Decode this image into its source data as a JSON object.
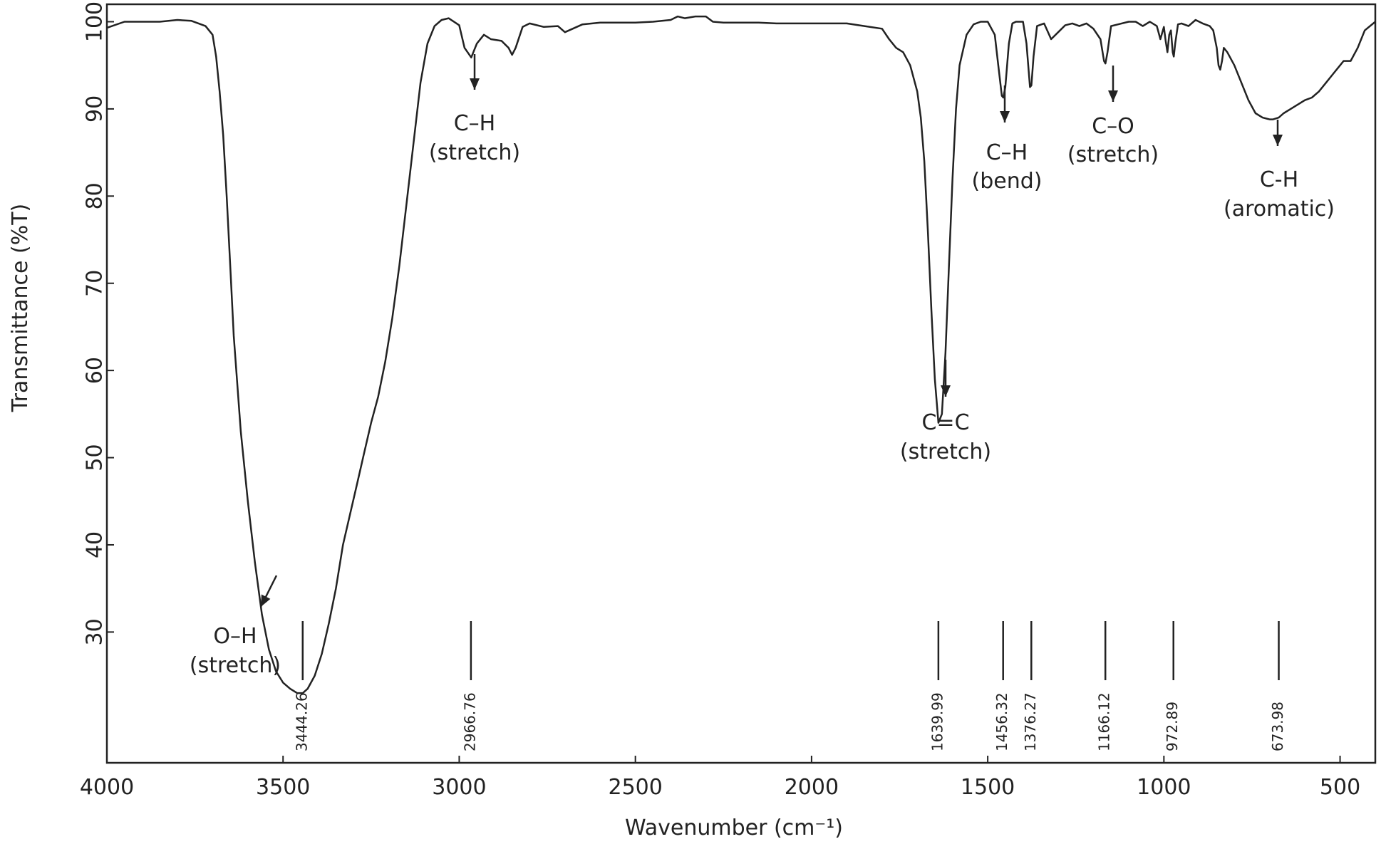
{
  "chart_data": {
    "type": "line",
    "title": "",
    "xlabel": "Wavenumber (cm⁻¹)",
    "ylabel": "Transmittance (%T)",
    "xlim": [
      4000,
      400
    ],
    "ylim": [
      15,
      102
    ],
    "x_reversed": true,
    "grid": false,
    "legend": "none",
    "x_ticks": [
      "4000",
      "3500",
      "3000",
      "2500",
      "2000",
      "1500",
      "1000",
      "500"
    ],
    "y_ticks": [
      "30",
      "40",
      "50",
      "60",
      "70",
      "80",
      "90",
      "100"
    ],
    "line_color": "#222222",
    "series": [
      {
        "x": [
          4000,
          3950,
          3900,
          3850,
          3800,
          3760,
          3740,
          3720,
          3700,
          3690,
          3680,
          3670,
          3660,
          3650,
          3640,
          3620,
          3600,
          3580,
          3560,
          3540,
          3520,
          3500,
          3480,
          3460,
          3444,
          3430,
          3410,
          3390,
          3370,
          3350,
          3330,
          3310,
          3290,
          3270,
          3250,
          3230,
          3210,
          3190,
          3170,
          3150,
          3130,
          3110,
          3090,
          3070,
          3050,
          3030,
          3000,
          2985,
          2966,
          2950,
          2930,
          2910,
          2880,
          2860,
          2850,
          2840,
          2820,
          2800,
          2760,
          2720,
          2700,
          2650,
          2600,
          2550,
          2500,
          2450,
          2400,
          2380,
          2360,
          2330,
          2300,
          2280,
          2250,
          2200,
          2150,
          2100,
          2050,
          2000,
          1950,
          1900,
          1850,
          1800,
          1780,
          1760,
          1740,
          1720,
          1700,
          1690,
          1680,
          1670,
          1660,
          1650,
          1640,
          1630,
          1620,
          1610,
          1600,
          1590,
          1580,
          1560,
          1540,
          1520,
          1500,
          1480,
          1470,
          1460,
          1456,
          1450,
          1440,
          1430,
          1420,
          1400,
          1390,
          1380,
          1376,
          1370,
          1360,
          1340,
          1320,
          1300,
          1280,
          1260,
          1240,
          1220,
          1200,
          1180,
          1170,
          1166,
          1160,
          1150,
          1130,
          1100,
          1080,
          1060,
          1040,
          1020,
          1010,
          1000,
          995,
          990,
          985,
          980,
          975,
          972,
          968,
          960,
          950,
          930,
          910,
          890,
          870,
          860,
          850,
          845,
          840,
          835,
          830,
          820,
          800,
          780,
          760,
          740,
          720,
          700,
          690,
          674,
          660,
          640,
          620,
          600,
          580,
          560,
          540,
          520,
          500,
          490,
          470,
          450,
          430,
          400
        ],
        "y": [
          99.3,
          100,
          100,
          100,
          100.2,
          100.1,
          99.8,
          99.5,
          98.5,
          96,
          92,
          87,
          80,
          72,
          64,
          53,
          45,
          38,
          32,
          28,
          25.5,
          24.2,
          23.5,
          23,
          23,
          23.5,
          25,
          27.5,
          31,
          35,
          40,
          43.5,
          47,
          50.5,
          54,
          57,
          61,
          66,
          72,
          79,
          86,
          93,
          97.5,
          99.5,
          100.2,
          100.4,
          99.6,
          97,
          95.9,
          97.5,
          98.5,
          98,
          97.8,
          97,
          96.2,
          97,
          99.4,
          99.8,
          99.4,
          99.5,
          98.8,
          99.7,
          99.9,
          99.9,
          99.9,
          100,
          100.2,
          100.6,
          100.4,
          100.6,
          100.6,
          100,
          99.9,
          99.9,
          99.9,
          99.8,
          99.8,
          99.8,
          99.8,
          99.8,
          99.5,
          99.2,
          98,
          97,
          96.5,
          95,
          92,
          89,
          84,
          76,
          67,
          59,
          54,
          55,
          62,
          72,
          82,
          90,
          95,
          98.5,
          99.7,
          100,
          100,
          98.5,
          95,
          91.5,
          91.3,
          92.5,
          97.5,
          99.8,
          100,
          100,
          97.5,
          92.5,
          92.7,
          96,
          99.5,
          99.8,
          98,
          98.8,
          99.6,
          99.8,
          99.5,
          99.8,
          99.2,
          98,
          95.5,
          95.2,
          96.5,
          99.5,
          99.7,
          100,
          100,
          99.5,
          100,
          99.5,
          98,
          99.4,
          97.8,
          96.5,
          98.5,
          99,
          96.5,
          96,
          97.5,
          99.7,
          99.8,
          99.5,
          100.2,
          99.8,
          99.5,
          99,
          97,
          95,
          94.5,
          95.5,
          97,
          96.5,
          95,
          93,
          91,
          89.5,
          89,
          88.8,
          88.8,
          89,
          89.5,
          90,
          90.5,
          91,
          91.3,
          92,
          93,
          94,
          95,
          95.5,
          95.5,
          97,
          99,
          100
        ]
      }
    ],
    "annotations": [
      {
        "line1": "O–H",
        "line2": "(stretch)"
      },
      {
        "line1": "C–H",
        "line2": "(stretch)"
      },
      {
        "line1": "C=C",
        "line2": "(stretch)"
      },
      {
        "line1": "C–H",
        "line2": "(bend)"
      },
      {
        "line1": "C–O",
        "line2": "(stretch)"
      },
      {
        "line1": "C-H",
        "line2": "(aromatic)"
      }
    ],
    "peak_labels": [
      {
        "x": 3444.26,
        "label": "3444.26"
      },
      {
        "x": 2966.76,
        "label": "2966.76"
      },
      {
        "x": 1639.99,
        "label": "1639.99"
      },
      {
        "x": 1456.32,
        "label": "1456.32"
      },
      {
        "x": 1376.27,
        "label": "1376.27"
      },
      {
        "x": 1166.12,
        "label": "1166.12"
      },
      {
        "x": 972.89,
        "label": "972.89"
      },
      {
        "x": 673.98,
        "label": "673.98"
      }
    ]
  }
}
